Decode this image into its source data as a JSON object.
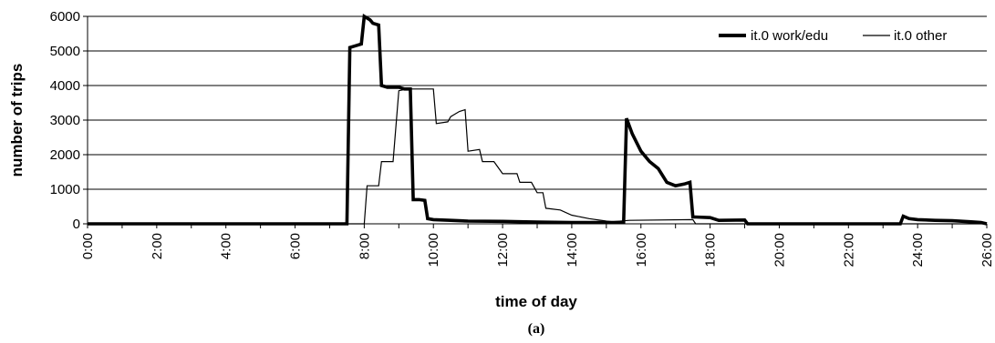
{
  "chart_data": {
    "type": "line",
    "xlabel": "time of day",
    "ylabel": "number of trips",
    "caption": "(a)",
    "x_ticks": [
      "0:00",
      "2:00",
      "4:00",
      "6:00",
      "8:00",
      "10:00",
      "12:00",
      "14:00",
      "16:00",
      "18:00",
      "20:00",
      "22:00",
      "24:00",
      "26:00"
    ],
    "y_ticks": [
      "0",
      "1000",
      "2000",
      "3000",
      "4000",
      "5000",
      "6000"
    ],
    "xlim": [
      "0:00",
      "26:00"
    ],
    "ylim": [
      0,
      6000
    ],
    "grid": "horizontal",
    "legend_position": "top-right",
    "series": [
      {
        "name": "it.0 work/edu",
        "line": "thick",
        "points": [
          [
            "0:00",
            0
          ],
          [
            "7:30",
            0
          ],
          [
            "7:35",
            5100
          ],
          [
            "7:45",
            5150
          ],
          [
            "7:55",
            5200
          ],
          [
            "8:00",
            6000
          ],
          [
            "8:10",
            5900
          ],
          [
            "8:15",
            5800
          ],
          [
            "8:25",
            5750
          ],
          [
            "8:30",
            4000
          ],
          [
            "8:40",
            3950
          ],
          [
            "8:50",
            3950
          ],
          [
            "9:00",
            3950
          ],
          [
            "9:10",
            3900
          ],
          [
            "9:20",
            3900
          ],
          [
            "9:25",
            700
          ],
          [
            "9:35",
            700
          ],
          [
            "9:45",
            680
          ],
          [
            "9:50",
            150
          ],
          [
            "10:00",
            120
          ],
          [
            "10:30",
            100
          ],
          [
            "11:00",
            80
          ],
          [
            "12:00",
            70
          ],
          [
            "13:00",
            50
          ],
          [
            "14:00",
            40
          ],
          [
            "15:00",
            40
          ],
          [
            "15:30",
            40
          ],
          [
            "15:35",
            3050
          ],
          [
            "15:45",
            2600
          ],
          [
            "16:00",
            2100
          ],
          [
            "16:15",
            1800
          ],
          [
            "16:30",
            1600
          ],
          [
            "16:45",
            1200
          ],
          [
            "17:00",
            1100
          ],
          [
            "17:15",
            1150
          ],
          [
            "17:25",
            1200
          ],
          [
            "17:30",
            200
          ],
          [
            "18:00",
            180
          ],
          [
            "18:15",
            100
          ],
          [
            "19:00",
            110
          ],
          [
            "19:05",
            0
          ],
          [
            "23:30",
            0
          ],
          [
            "23:35",
            220
          ],
          [
            "23:45",
            150
          ],
          [
            "24:00",
            120
          ],
          [
            "24:30",
            100
          ],
          [
            "25:00",
            90
          ],
          [
            "25:30",
            60
          ],
          [
            "25:50",
            40
          ],
          [
            "26:00",
            0
          ]
        ]
      },
      {
        "name": "it.0 other",
        "line": "thin",
        "points": [
          [
            "0:00",
            0
          ],
          [
            "8:00",
            0
          ],
          [
            "8:05",
            1100
          ],
          [
            "8:25",
            1100
          ],
          [
            "8:30",
            1800
          ],
          [
            "8:50",
            1800
          ],
          [
            "9:00",
            3850
          ],
          [
            "9:15",
            3900
          ],
          [
            "9:35",
            3900
          ],
          [
            "10:00",
            3900
          ],
          [
            "10:05",
            2900
          ],
          [
            "10:25",
            2950
          ],
          [
            "10:30",
            3100
          ],
          [
            "10:45",
            3250
          ],
          [
            "10:55",
            3300
          ],
          [
            "11:00",
            2100
          ],
          [
            "11:20",
            2150
          ],
          [
            "11:25",
            1800
          ],
          [
            "11:45",
            1800
          ],
          [
            "12:00",
            1450
          ],
          [
            "12:25",
            1450
          ],
          [
            "12:30",
            1200
          ],
          [
            "12:50",
            1200
          ],
          [
            "13:00",
            900
          ],
          [
            "13:10",
            900
          ],
          [
            "13:15",
            450
          ],
          [
            "13:40",
            400
          ],
          [
            "14:00",
            250
          ],
          [
            "14:30",
            150
          ],
          [
            "15:00",
            80
          ],
          [
            "15:10",
            60
          ],
          [
            "15:40",
            100
          ],
          [
            "17:30",
            120
          ],
          [
            "17:35",
            0
          ],
          [
            "26:00",
            0
          ]
        ]
      }
    ]
  }
}
